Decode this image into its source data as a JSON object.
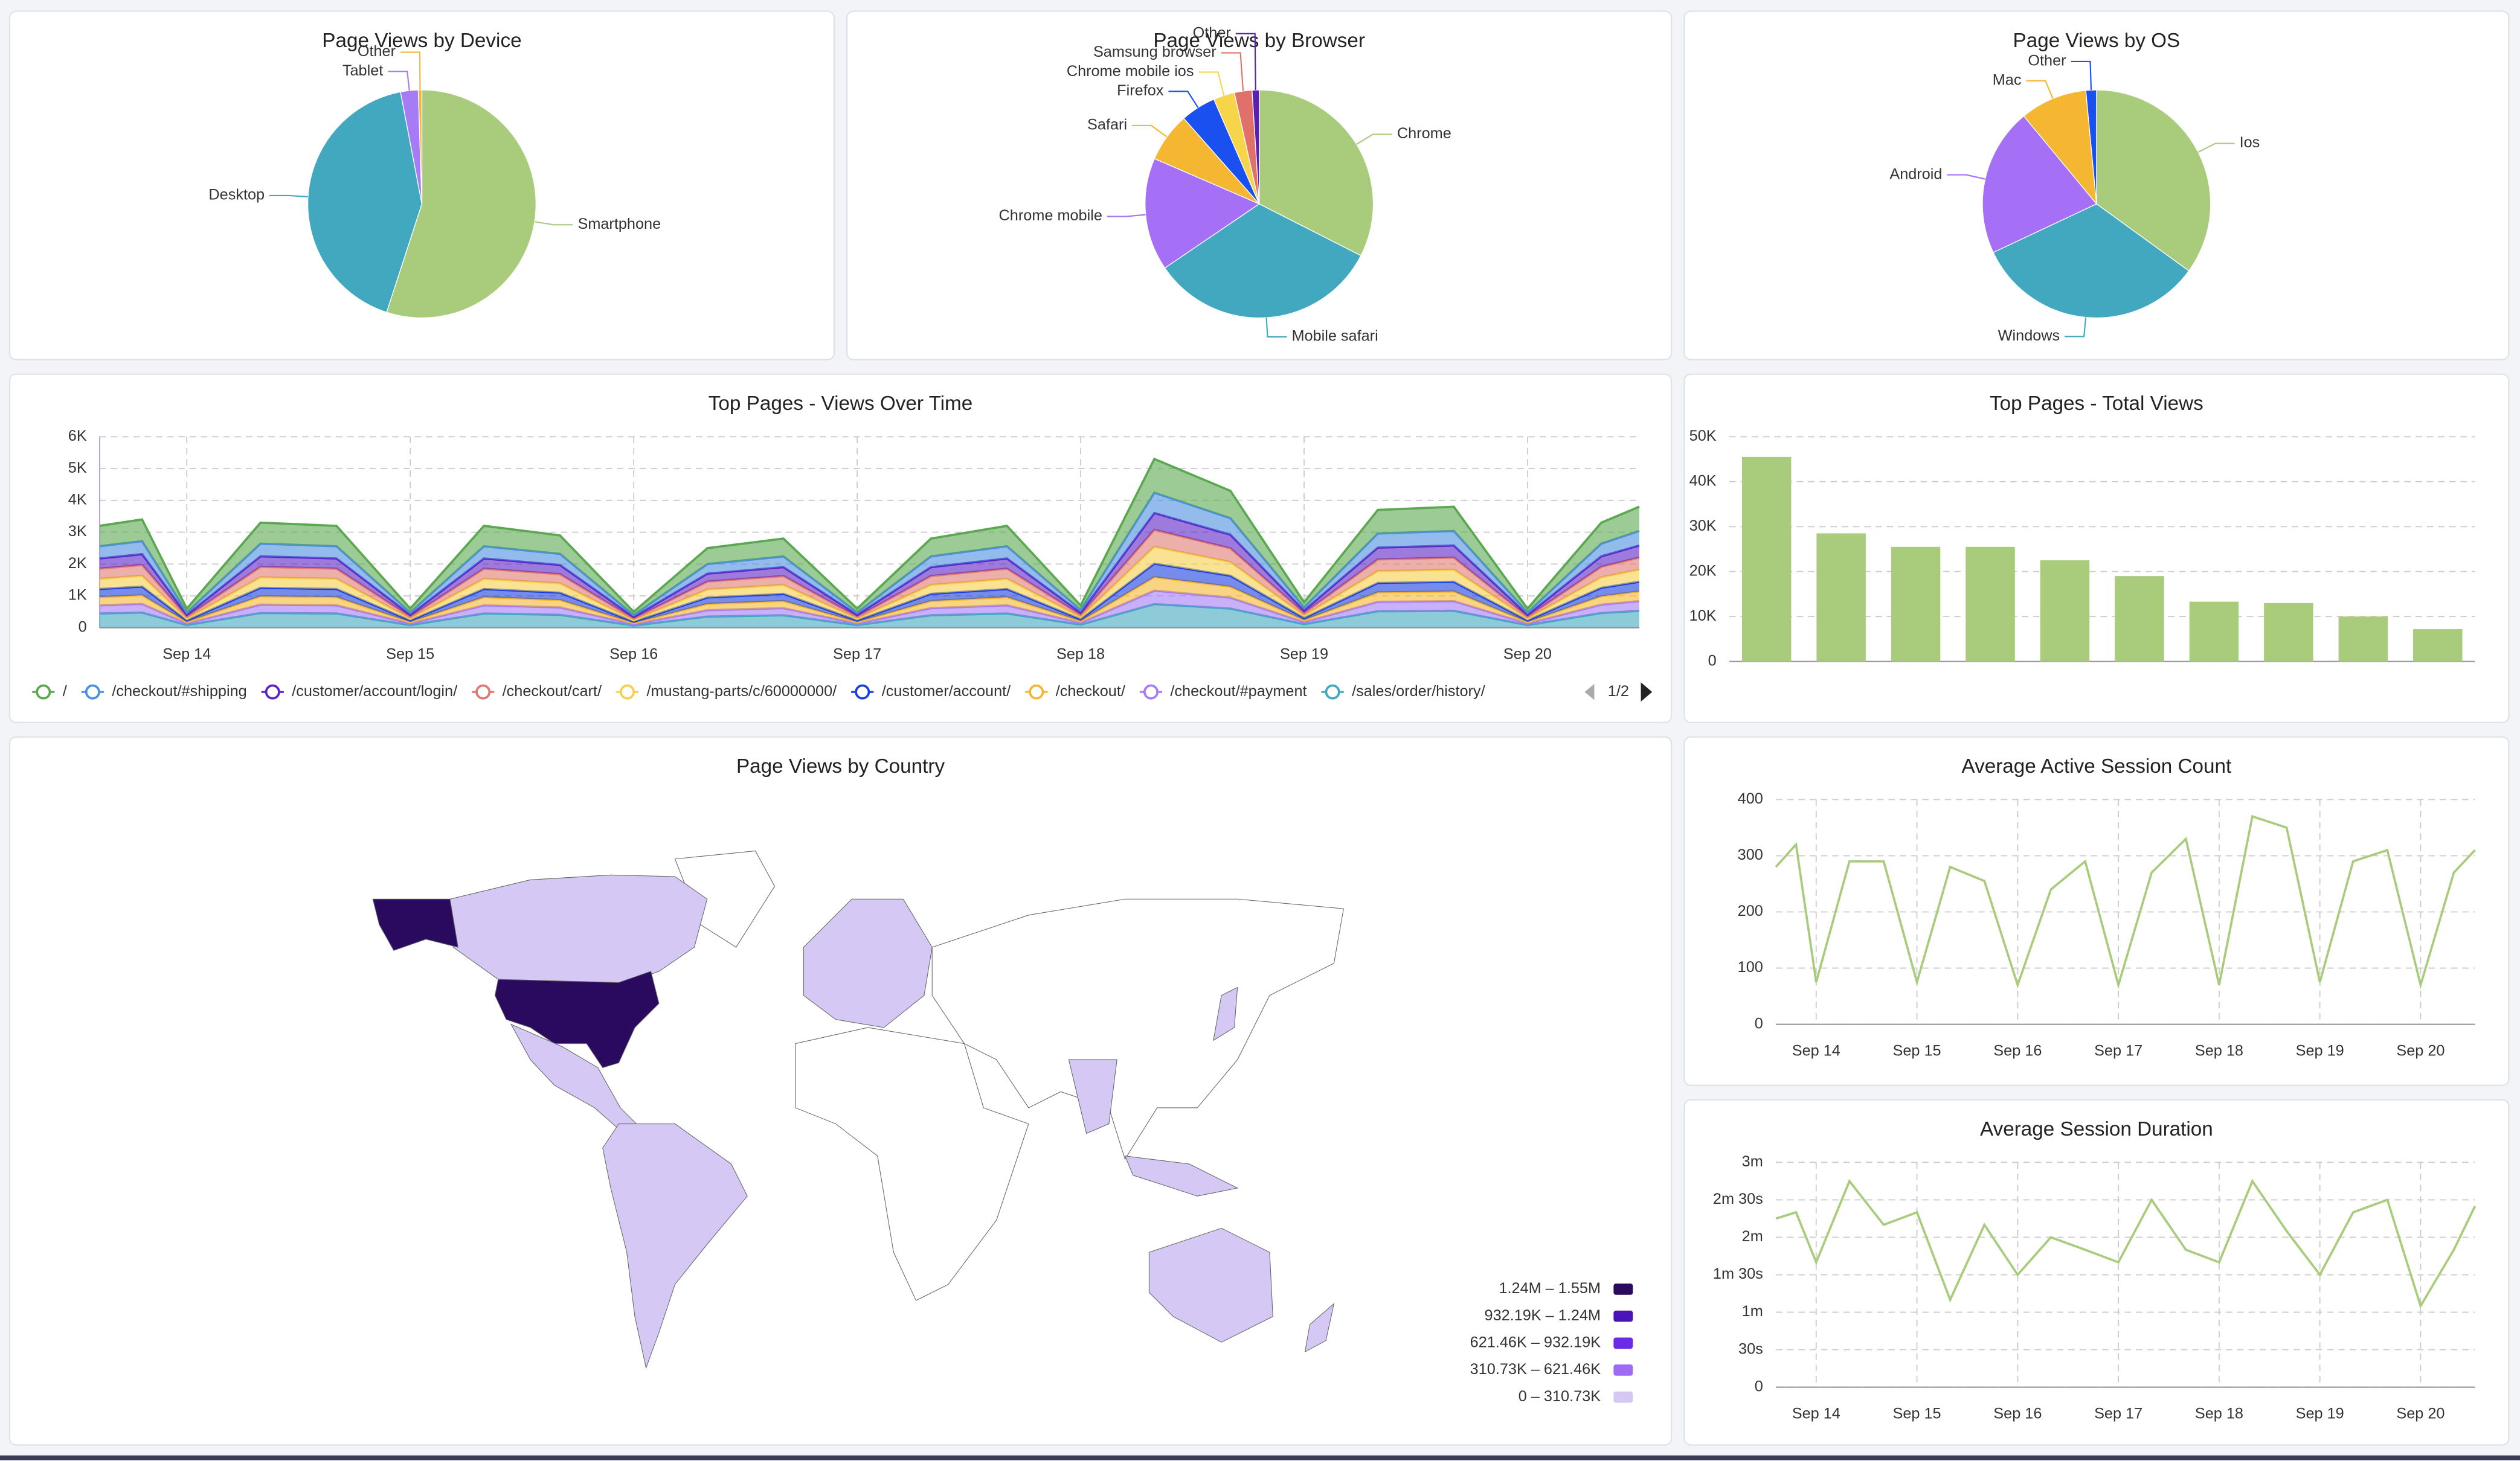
{
  "chart_data": [
    {
      "type": "pie",
      "title": "Page Views by Device",
      "categories": [
        "Smartphone",
        "Desktop",
        "Tablet",
        "Other"
      ],
      "values": [
        55,
        42,
        2.5,
        0.5
      ],
      "colors": [
        "#a9cc7c",
        "#41a8c0",
        "#a57cf6",
        "#f5b731"
      ]
    },
    {
      "type": "pie",
      "title": "Page Views by Browser",
      "categories": [
        "Chrome",
        "Mobile safari",
        "Chrome mobile",
        "Safari",
        "Firefox",
        "Chrome mobile ios",
        "Samsung browser",
        "Other"
      ],
      "values": [
        32.5,
        33,
        16,
        7,
        5,
        3,
        2.5,
        1
      ],
      "colors": [
        "#a9cc7c",
        "#41a8c0",
        "#a570f5",
        "#f5b731",
        "#1a4ff0",
        "#f7d54a",
        "#e0706a",
        "#5a1fb5"
      ]
    },
    {
      "type": "pie",
      "title": "Page Views by OS",
      "categories": [
        "Ios",
        "Windows",
        "Android",
        "Mac",
        "Other"
      ],
      "values": [
        35,
        33,
        21,
        9.5,
        1.5
      ],
      "colors": [
        "#a9cc7c",
        "#41a8c0",
        "#a570f5",
        "#f5b731",
        "#1a4ff0"
      ]
    },
    {
      "type": "area",
      "stacked": true,
      "title": "Top Pages - Views Over Time",
      "x": [
        -0.39,
        -0.2,
        0,
        0.33,
        0.67,
        1,
        1.33,
        1.67,
        2,
        2.33,
        2.67,
        3,
        3.33,
        3.67,
        4,
        4.33,
        4.67,
        5,
        5.33,
        5.67,
        6,
        6.33,
        6.5
      ],
      "series": [
        {
          "name": "/",
          "color": "#5aa850",
          "values": [
            640,
            680,
            120,
            660,
            640,
            120,
            640,
            580,
            100,
            500,
            560,
            120,
            560,
            640,
            140,
            1060,
            860,
            160,
            740,
            760,
            120,
            660,
            760
          ]
        },
        {
          "name": "/checkout/#shipping",
          "color": "#4b8fe0",
          "values": [
            384,
            408,
            72,
            396,
            384,
            72,
            384,
            348,
            60,
            300,
            336,
            72,
            336,
            384,
            84,
            636,
            516,
            96,
            444,
            456,
            72,
            396,
            456
          ]
        },
        {
          "name": "/customer/account/login/",
          "color": "#5b23c5",
          "values": [
            320,
            340,
            60,
            330,
            320,
            60,
            320,
            290,
            50,
            250,
            280,
            60,
            280,
            320,
            70,
            530,
            430,
            80,
            370,
            380,
            60,
            330,
            380
          ]
        },
        {
          "name": "/checkout/cart/",
          "color": "#e07a70",
          "values": [
            320,
            340,
            60,
            330,
            320,
            60,
            320,
            290,
            50,
            250,
            280,
            60,
            280,
            320,
            70,
            530,
            430,
            80,
            370,
            380,
            60,
            330,
            380
          ]
        },
        {
          "name": "/mustang-parts/c/60000000/",
          "color": "#f5d04a",
          "values": [
            320,
            340,
            60,
            330,
            320,
            60,
            320,
            290,
            50,
            250,
            280,
            60,
            280,
            320,
            70,
            530,
            430,
            80,
            370,
            380,
            60,
            330,
            380
          ]
        },
        {
          "name": "/customer/account/",
          "color": "#1a3fe0",
          "values": [
            256,
            272,
            48,
            264,
            256,
            48,
            256,
            232,
            40,
            200,
            224,
            48,
            224,
            256,
            56,
            424,
            344,
            64,
            296,
            304,
            48,
            264,
            304
          ]
        },
        {
          "name": "/checkout/",
          "color": "#f5b731",
          "values": [
            256,
            272,
            48,
            264,
            256,
            48,
            256,
            232,
            40,
            200,
            224,
            48,
            224,
            256,
            56,
            424,
            344,
            64,
            296,
            304,
            48,
            264,
            304
          ]
        },
        {
          "name": "/checkout/#payment",
          "color": "#a57cf6",
          "values": [
            256,
            272,
            48,
            264,
            256,
            48,
            256,
            232,
            40,
            200,
            224,
            48,
            224,
            256,
            56,
            424,
            344,
            64,
            296,
            304,
            48,
            264,
            304
          ]
        },
        {
          "name": "/sales/order/history/",
          "color": "#41a8c0",
          "values": [
            448,
            476,
            84,
            462,
            448,
            84,
            448,
            406,
            70,
            350,
            392,
            84,
            392,
            448,
            98,
            742,
            602,
            112,
            518,
            532,
            84,
            462,
            532
          ]
        }
      ],
      "xlim": [
        -0.39,
        6.5
      ],
      "xticks": [
        {
          "value": 0,
          "label": "Sep 14"
        },
        {
          "value": 1,
          "label": "Sep 15"
        },
        {
          "value": 2,
          "label": "Sep 16"
        },
        {
          "value": 3,
          "label": "Sep 17"
        },
        {
          "value": 4,
          "label": "Sep 18"
        },
        {
          "value": 5,
          "label": "Sep 19"
        },
        {
          "value": 6,
          "label": "Sep 20"
        }
      ],
      "ylim": [
        0,
        6000
      ],
      "yticks": [
        0,
        {
          "value": 1000,
          "label": "1K"
        },
        {
          "value": 2000,
          "label": "2K"
        },
        {
          "value": 3000,
          "label": "3K"
        },
        {
          "value": 4000,
          "label": "4K"
        },
        {
          "value": 5000,
          "label": "5K"
        },
        {
          "value": 6000,
          "label": "6K"
        }
      ],
      "grid": true,
      "legend_page": "1/2"
    },
    {
      "type": "bar",
      "title": "Top Pages - Total Views",
      "categories": [
        null,
        null,
        null,
        null,
        null,
        null,
        null,
        null,
        null,
        null
      ],
      "values": [
        45500,
        28500,
        25500,
        25500,
        22500,
        19000,
        13300,
        13000,
        10000,
        7200
      ],
      "color": "#a9cc7c",
      "ylim": [
        0,
        50000
      ],
      "yticks": [
        0,
        {
          "value": 10000,
          "label": "10K"
        },
        {
          "value": 20000,
          "label": "20K"
        },
        {
          "value": 30000,
          "label": "30K"
        },
        {
          "value": 40000,
          "label": "40K"
        },
        {
          "value": 50000,
          "label": "50K"
        }
      ],
      "grid": true
    },
    {
      "type": "line",
      "title": "Average Active Session Count",
      "x": [
        -0.4,
        -0.2,
        0,
        0.33,
        0.67,
        1,
        1.33,
        1.67,
        2,
        2.33,
        2.67,
        3,
        3.33,
        3.67,
        4,
        4.33,
        4.67,
        5,
        5.33,
        5.67,
        6,
        6.33,
        6.54
      ],
      "values": [
        280,
        320,
        75,
        290,
        290,
        75,
        280,
        255,
        70,
        240,
        290,
        70,
        270,
        330,
        70,
        370,
        350,
        75,
        290,
        310,
        70,
        270,
        310
      ],
      "color": "#a9cc7c",
      "xlim": [
        -0.4,
        6.54
      ],
      "xticks": [
        {
          "value": 0,
          "label": "Sep 14"
        },
        {
          "value": 1,
          "label": "Sep 15"
        },
        {
          "value": 2,
          "label": "Sep 16"
        },
        {
          "value": 3,
          "label": "Sep 17"
        },
        {
          "value": 4,
          "label": "Sep 18"
        },
        {
          "value": 5,
          "label": "Sep 19"
        },
        {
          "value": 6,
          "label": "Sep 20"
        }
      ],
      "ylim": [
        0,
        400
      ],
      "yticks": [
        0,
        100,
        200,
        300,
        400
      ],
      "grid": true
    },
    {
      "type": "line",
      "title": "Average Session Duration",
      "x": [
        -0.4,
        -0.2,
        0,
        0.33,
        0.67,
        1,
        1.33,
        1.67,
        2,
        2.33,
        2.67,
        3,
        3.33,
        3.67,
        4,
        4.33,
        4.67,
        5,
        5.33,
        5.67,
        6,
        6.33,
        6.54
      ],
      "values": [
        135,
        140,
        100,
        165,
        130,
        140,
        70,
        130,
        90,
        120,
        110,
        100,
        150,
        110,
        100,
        165,
        125,
        90,
        140,
        150,
        65,
        110,
        145
      ],
      "color": "#a9cc7c",
      "xlim": [
        -0.4,
        6.54
      ],
      "xticks": [
        {
          "value": 0,
          "label": "Sep 14"
        },
        {
          "value": 1,
          "label": "Sep 15"
        },
        {
          "value": 2,
          "label": "Sep 16"
        },
        {
          "value": 3,
          "label": "Sep 17"
        },
        {
          "value": 4,
          "label": "Sep 18"
        },
        {
          "value": 5,
          "label": "Sep 19"
        },
        {
          "value": 6,
          "label": "Sep 20"
        }
      ],
      "ylim": [
        0,
        180
      ],
      "yticks": [
        0,
        {
          "value": 30,
          "label": "30s"
        },
        {
          "value": 60,
          "label": "1m"
        },
        {
          "value": 90,
          "label": "1m 30s"
        },
        {
          "value": 120,
          "label": "2m"
        },
        {
          "value": 150,
          "label": "2m 30s"
        },
        {
          "value": 180,
          "label": "3m"
        }
      ],
      "grid": true
    },
    {
      "type": "choropleth",
      "title": "Page Views by Country",
      "legend": [
        {
          "label": "1.24M – 1.55M",
          "color": "#2a0a5e"
        },
        {
          "label": "932.19K – 1.24M",
          "color": "#4a14b8"
        },
        {
          "label": "621.46K – 932.19K",
          "color": "#6a2ae8"
        },
        {
          "label": "310.73K – 621.46K",
          "color": "#9d6cf0"
        },
        {
          "label": "0 – 310.73K",
          "color": "#d6c8f5"
        }
      ]
    }
  ]
}
